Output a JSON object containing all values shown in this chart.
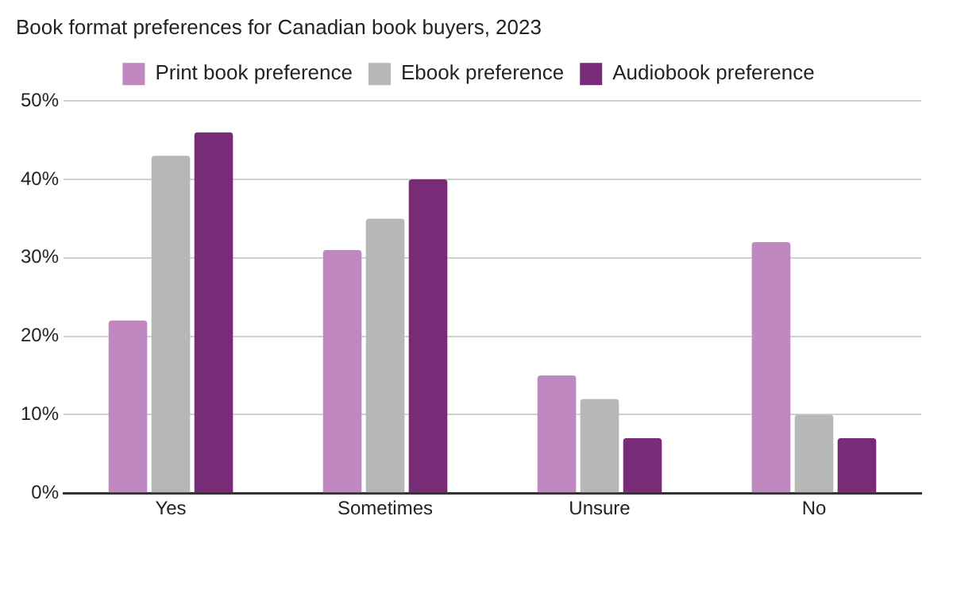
{
  "chart_data": {
    "type": "bar",
    "title": "Book format preferences for Canadian book buyers, 2023",
    "categories": [
      "Yes",
      "Sometimes",
      "Unsure",
      "No"
    ],
    "series": [
      {
        "name": "Print book preference",
        "color": "#c088c0",
        "values": [
          22,
          31,
          15,
          32
        ]
      },
      {
        "name": "Ebook preference",
        "color": "#b7b7b7",
        "values": [
          43,
          35,
          12,
          10
        ]
      },
      {
        "name": "Audiobook preference",
        "color": "#782c77",
        "values": [
          46,
          40,
          7,
          7
        ]
      }
    ],
    "ylim": [
      0,
      50
    ],
    "yticks": [
      {
        "value": 0,
        "label": "0%"
      },
      {
        "value": 10,
        "label": "10%"
      },
      {
        "value": 20,
        "label": "20%"
      },
      {
        "value": 30,
        "label": "30%"
      },
      {
        "value": 40,
        "label": "40%"
      },
      {
        "value": 50,
        "label": "50%"
      }
    ],
    "grid": "y",
    "legend": "top"
  }
}
